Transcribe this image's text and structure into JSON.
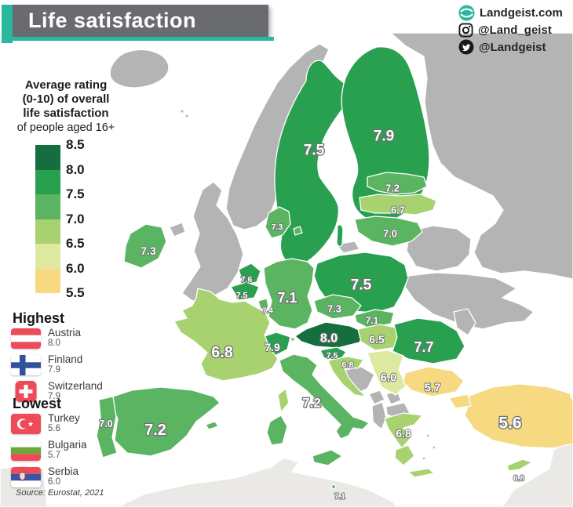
{
  "header": {
    "title": "Life satisfaction",
    "accent_color": "#29b79e",
    "bar_color": "#6a6b6e"
  },
  "branding": {
    "website": {
      "icon": "globe-icon",
      "text": "Landgeist.com"
    },
    "instagram": {
      "icon": "instagram-icon",
      "text": "@Land_geist"
    },
    "twitter": {
      "icon": "twitter-icon",
      "text": "@Landgeist"
    }
  },
  "legend": {
    "title_lines": [
      "Average rating",
      "(0-10) of overall",
      "life satisfaction"
    ],
    "subtitle": "of people aged 16+",
    "ticks": [
      "8.5",
      "8.0",
      "7.5",
      "7.0",
      "6.5",
      "6.0",
      "5.5"
    ],
    "band_colors": [
      "#156e3d",
      "#28a050",
      "#5bb461",
      "#a7d26f",
      "#dde9a0",
      "#f7d981"
    ]
  },
  "highest": {
    "label": "Highest",
    "entries": [
      {
        "country": "Austria",
        "value": "8.0",
        "flag": "austria"
      },
      {
        "country": "Finland",
        "value": "7.9",
        "flag": "finland"
      },
      {
        "country": "Switzerland",
        "value": "7.9",
        "flag": "switzerland"
      }
    ]
  },
  "lowest": {
    "label": "Lowest",
    "entries": [
      {
        "country": "Turkey",
        "value": "5.6",
        "flag": "turkey"
      },
      {
        "country": "Bulgaria",
        "value": "5.7",
        "flag": "bulgaria"
      },
      {
        "country": "Serbia",
        "value": "6.0",
        "flag": "serbia"
      }
    ]
  },
  "source": "Source: Eurostat, 2021",
  "map": {
    "sea_color": "#ffffff",
    "no_data_color": "#b4b4b4",
    "outside_region_color": "#eae9e5",
    "countries": [
      {
        "id": "sweden",
        "name": "Sweden",
        "value": "7.5"
      },
      {
        "id": "finland",
        "name": "Finland",
        "value": "7.9"
      },
      {
        "id": "estonia",
        "name": "Estonia",
        "value": "7.2"
      },
      {
        "id": "latvia",
        "name": "Latvia",
        "value": "6.7"
      },
      {
        "id": "lithuania",
        "name": "Lithuania",
        "value": "7.0"
      },
      {
        "id": "poland",
        "name": "Poland",
        "value": "7.5"
      },
      {
        "id": "denmark",
        "name": "Denmark",
        "value": "7.3"
      },
      {
        "id": "ireland",
        "name": "Ireland",
        "value": "7.3"
      },
      {
        "id": "netherlands",
        "name": "Netherlands",
        "value": "7.6"
      },
      {
        "id": "belgium",
        "name": "Belgium",
        "value": "7.5"
      },
      {
        "id": "luxembourg",
        "name": "Luxembourg",
        "value": "7.4"
      },
      {
        "id": "germany",
        "name": "Germany",
        "value": "7.1"
      },
      {
        "id": "czechia",
        "name": "Czechia",
        "value": "7.3"
      },
      {
        "id": "slovakia",
        "name": "Slovakia",
        "value": "7.1"
      },
      {
        "id": "austria",
        "name": "Austria",
        "value": "8.0"
      },
      {
        "id": "switzerland",
        "name": "Switzerland",
        "value": "7.9"
      },
      {
        "id": "france",
        "name": "France",
        "value": "6.8"
      },
      {
        "id": "portugal",
        "name": "Portugal",
        "value": "7.0"
      },
      {
        "id": "spain",
        "name": "Spain",
        "value": "7.2"
      },
      {
        "id": "italy",
        "name": "Italy",
        "value": "7.2"
      },
      {
        "id": "slovenia",
        "name": "Slovenia",
        "value": "7.5"
      },
      {
        "id": "croatia",
        "name": "Croatia",
        "value": "6.8"
      },
      {
        "id": "hungary",
        "name": "Hungary",
        "value": "6.5"
      },
      {
        "id": "romania",
        "name": "Romania",
        "value": "7.7"
      },
      {
        "id": "serbia",
        "name": "Serbia",
        "value": "6.0"
      },
      {
        "id": "bulgaria",
        "name": "Bulgaria",
        "value": "5.7"
      },
      {
        "id": "greece",
        "name": "Greece",
        "value": "6.8"
      },
      {
        "id": "turkey",
        "name": "Turkey",
        "value": "5.6"
      },
      {
        "id": "cyprus",
        "name": "Cyprus",
        "value": "6.8"
      },
      {
        "id": "malta",
        "name": "Malta",
        "value": "7.1"
      }
    ],
    "no_data_countries": [
      "Iceland",
      "Norway",
      "United Kingdom",
      "Russia",
      "Belarus",
      "Ukraine",
      "Moldova",
      "Bosnia and Herzegovina",
      "Montenegro",
      "Kosovo",
      "North Macedonia",
      "Albania"
    ]
  }
}
